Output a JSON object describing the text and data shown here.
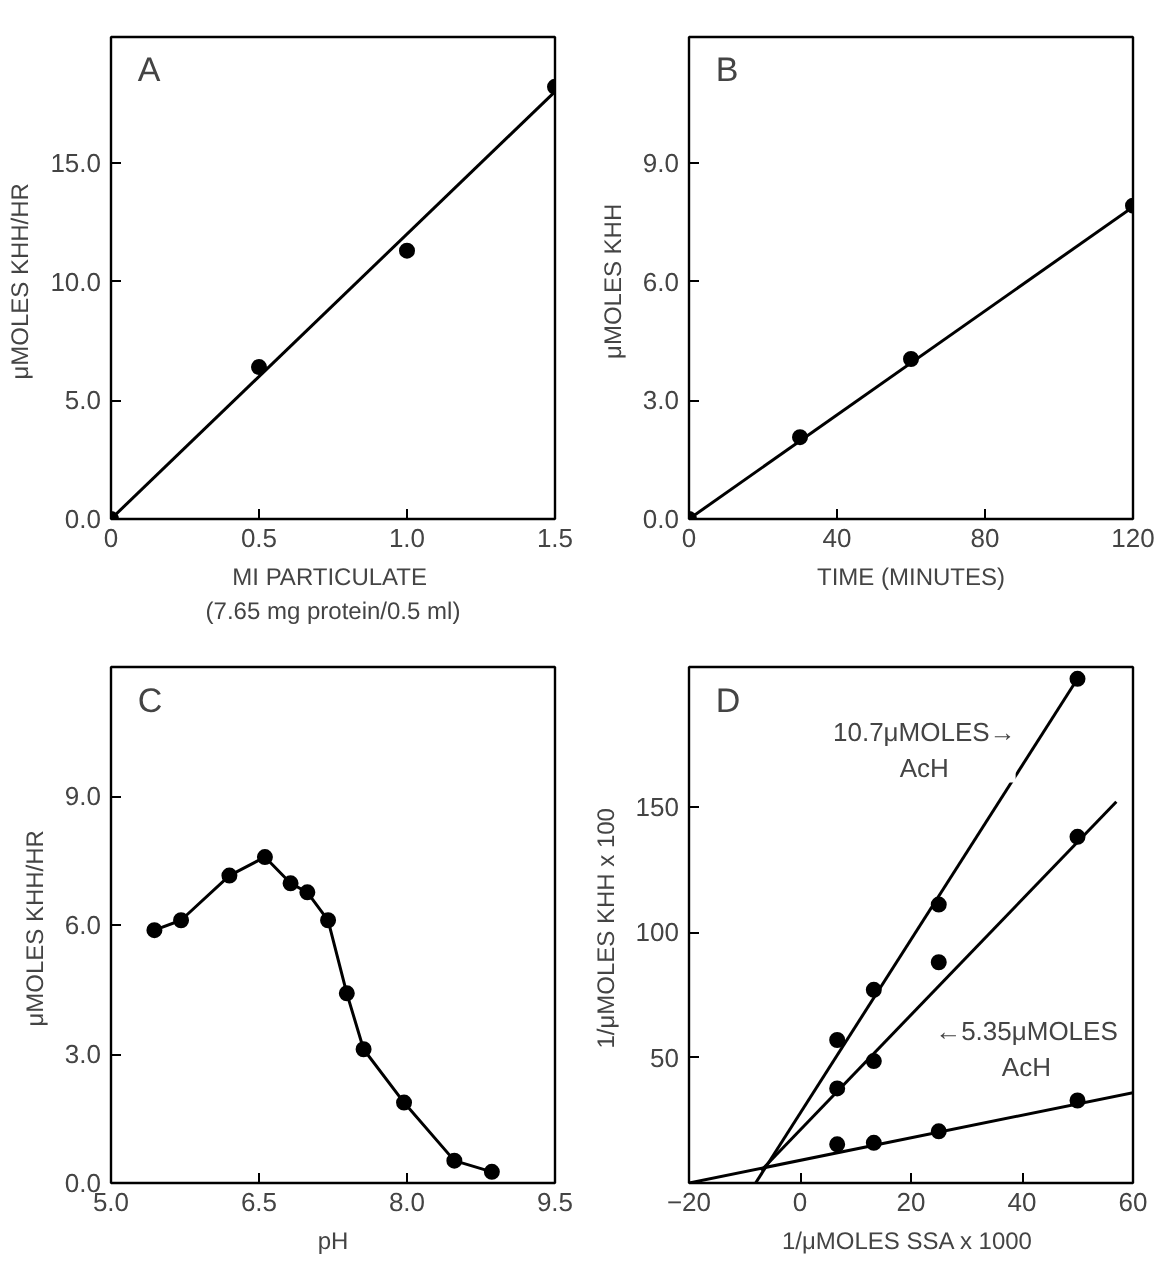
{
  "chart_data": [
    {
      "type": "scatter",
      "title": "A",
      "xlabel": "MI  PARTICULATE\n(7.65 mg protein/0.5 ml)",
      "ylabel": "μMOLES  KHH/HR",
      "grid": false,
      "xlim": [
        0,
        1.5
      ],
      "ylim": [
        0,
        20.3
      ],
      "xticks": [
        0,
        0.5,
        {
          "value": 1,
          "label": "1.0"
        },
        1.5
      ],
      "yticks": [
        {
          "value": 0,
          "label": "0.0"
        },
        {
          "value": 5,
          "label": "5.0"
        },
        {
          "value": 10,
          "label": "10.0"
        },
        {
          "value": 15,
          "label": "15.0"
        }
      ],
      "series": [
        {
          "marker": "circle",
          "color": "#000000",
          "x": [
            0,
            0.5,
            1.0,
            1.5
          ],
          "values": [
            0,
            6.4,
            11.3,
            18.2
          ]
        },
        {
          "type": "line",
          "marker": "none",
          "color": "#000000",
          "x": [
            0,
            1.5
          ],
          "values": [
            0,
            18.0
          ]
        }
      ]
    },
    {
      "type": "scatter",
      "title": "B",
      "xlabel": "TIME (MINUTES)",
      "ylabel": "μMOLES  KHH",
      "grid": false,
      "xlim": [
        0,
        120
      ],
      "ylim": [
        0,
        12.2
      ],
      "xticks": [
        0,
        40,
        80,
        120
      ],
      "yticks": [
        {
          "value": 0,
          "label": "0.0"
        },
        {
          "value": 3,
          "label": "3.0"
        },
        {
          "value": 6,
          "label": "6.0"
        },
        {
          "value": 9,
          "label": "9.0"
        }
      ],
      "series": [
        {
          "marker": "circle",
          "color": "#000000",
          "x": [
            0,
            30,
            60,
            120
          ],
          "values": [
            0,
            2.07,
            4.05,
            7.93
          ]
        },
        {
          "type": "line",
          "marker": "none",
          "color": "#000000",
          "x": [
            0,
            120
          ],
          "values": [
            0,
            7.9
          ]
        }
      ]
    },
    {
      "type": "scatter",
      "title": "C",
      "xlabel": "pH",
      "ylabel": "μMOLES  KHH/HR",
      "grid": false,
      "xlim": [
        5.0,
        9.5
      ],
      "ylim": [
        0,
        12.0
      ],
      "xticks": [
        {
          "value": 5,
          "label": "5.0"
        },
        6.5,
        {
          "value": 8,
          "label": "8.0"
        },
        9.5
      ],
      "yticks": [
        {
          "value": 0,
          "label": "0.0"
        },
        {
          "value": 3,
          "label": "3.0"
        },
        {
          "value": 6,
          "label": "6.0"
        },
        {
          "value": 9,
          "label": "9.0"
        }
      ],
      "series": [
        {
          "marker": "circle",
          "color": "#000000",
          "x": [
            5.44,
            5.71,
            6.2,
            6.56,
            6.82,
            6.99,
            7.2,
            7.39,
            7.56,
            7.97,
            8.48,
            8.86
          ],
          "values": [
            5.88,
            6.11,
            7.15,
            7.58,
            6.97,
            6.76,
            6.11,
            4.41,
            3.11,
            1.87,
            0.52,
            0.26
          ]
        },
        {
          "type": "line",
          "marker": "none",
          "color": "#000000",
          "x": [
            5.44,
            5.71,
            6.2,
            6.56,
            6.82,
            6.99,
            7.2,
            7.39,
            7.56,
            7.97,
            8.48,
            8.86
          ],
          "values": [
            5.88,
            6.11,
            7.15,
            7.58,
            6.97,
            6.76,
            6.11,
            4.41,
            3.11,
            1.87,
            0.52,
            0.26
          ]
        }
      ]
    },
    {
      "type": "scatter",
      "title": "D",
      "xlabel": "1/μMOLES  SSA x 1000",
      "ylabel": "1/μMOLES  KHH x 100",
      "grid": false,
      "xlim": [
        -20,
        60
      ],
      "ylim": [
        0,
        205.7
      ],
      "xticks": [
        -20,
        0,
        20,
        40,
        60
      ],
      "yticks": [
        50,
        100,
        150
      ],
      "annotations": [
        "10.7μMOLES→\nAcH",
        "←5.35μMOLES\nAcH"
      ],
      "series": [
        {
          "marker": "circle",
          "color": "#000000",
          "x": [
            6.7,
            13.3,
            25,
            50
          ],
          "values": [
            57,
            77,
            111,
            201
          ]
        },
        {
          "marker": "circle",
          "color": "#000000",
          "x": [
            6.7,
            13.3,
            25,
            50
          ],
          "values": [
            37.7,
            48.6,
            88,
            138
          ]
        },
        {
          "marker": "circle",
          "color": "#000000",
          "x": [
            6.7,
            13.3,
            25,
            50
          ],
          "values": [
            15.4,
            16,
            20.6,
            32.9
          ]
        },
        {
          "type": "line",
          "marker": "none",
          "color": "#000000",
          "x": [
            -8,
            50
          ],
          "values": [
            0,
            201
          ]
        },
        {
          "type": "line",
          "marker": "none",
          "color": "#000000",
          "x": [
            -7,
            57
          ],
          "values": [
            5,
            152
          ]
        },
        {
          "type": "line",
          "marker": "none",
          "color": "#000000",
          "x": [
            -20,
            60
          ],
          "values": [
            0,
            36
          ]
        }
      ]
    }
  ]
}
